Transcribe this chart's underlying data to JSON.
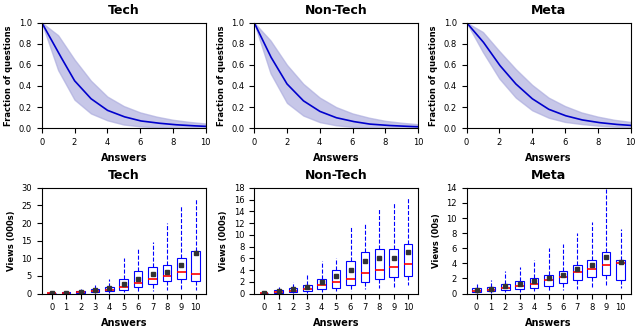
{
  "titles_top": [
    "Tech",
    "Non-Tech",
    "Meta"
  ],
  "titles_bottom": [
    "Tech",
    "Non-Tech",
    "Meta"
  ],
  "top_xlabel": "Answers",
  "top_ylabel": "Fraction of questions",
  "bottom_xlabel": "Answers",
  "bottom_ylabels": [
    "Views (000s)",
    "Views (000s)",
    "Views (00s)"
  ],
  "curve_color": "#0000cc",
  "fill_color": "#aaaadd",
  "tech_curve_mean": [
    1.0,
    0.72,
    0.45,
    0.28,
    0.17,
    0.11,
    0.07,
    0.05,
    0.035,
    0.025,
    0.018
  ],
  "tech_curve_upper": [
    1.0,
    0.88,
    0.65,
    0.45,
    0.3,
    0.21,
    0.15,
    0.11,
    0.08,
    0.06,
    0.045
  ],
  "tech_curve_lower": [
    1.0,
    0.55,
    0.27,
    0.14,
    0.075,
    0.035,
    0.018,
    0.009,
    0.004,
    0.002,
    0.001
  ],
  "nontech_curve_mean": [
    1.0,
    0.68,
    0.42,
    0.26,
    0.16,
    0.1,
    0.065,
    0.04,
    0.028,
    0.02,
    0.014
  ],
  "nontech_curve_upper": [
    1.0,
    0.83,
    0.6,
    0.42,
    0.29,
    0.2,
    0.14,
    0.1,
    0.07,
    0.052,
    0.038
  ],
  "nontech_curve_lower": [
    1.0,
    0.52,
    0.24,
    0.12,
    0.058,
    0.028,
    0.013,
    0.006,
    0.003,
    0.001,
    0.001
  ],
  "meta_curve_mean": [
    1.0,
    0.82,
    0.6,
    0.42,
    0.28,
    0.18,
    0.12,
    0.08,
    0.055,
    0.038,
    0.027
  ],
  "meta_curve_upper": [
    1.0,
    0.91,
    0.73,
    0.56,
    0.41,
    0.29,
    0.21,
    0.15,
    0.11,
    0.08,
    0.06
  ],
  "meta_curve_lower": [
    1.0,
    0.72,
    0.47,
    0.29,
    0.17,
    0.1,
    0.06,
    0.04,
    0.025,
    0.015,
    0.009
  ],
  "tech_boxes": {
    "positions": [
      0,
      1,
      2,
      3,
      4,
      5,
      6,
      7,
      8,
      9,
      10
    ],
    "medians": [
      0.08,
      0.18,
      0.35,
      0.7,
      1.1,
      2.0,
      3.0,
      4.2,
      5.0,
      6.0,
      5.5
    ],
    "q1": [
      0.04,
      0.1,
      0.2,
      0.4,
      0.6,
      1.0,
      1.8,
      2.8,
      3.5,
      4.0,
      3.5
    ],
    "q3": [
      0.15,
      0.3,
      0.6,
      1.2,
      1.8,
      4.0,
      6.5,
      7.5,
      8.0,
      10.0,
      12.0
    ],
    "whislo": [
      0.01,
      0.04,
      0.08,
      0.15,
      0.25,
      0.3,
      0.5,
      0.8,
      1.0,
      1.2,
      1.0
    ],
    "whishi": [
      0.3,
      0.6,
      1.2,
      2.5,
      4.0,
      10.0,
      13.0,
      14.5,
      20.0,
      25.0,
      27.0
    ],
    "means": [
      0.12,
      0.25,
      0.5,
      1.0,
      1.5,
      2.8,
      4.0,
      5.5,
      6.0,
      8.0,
      11.5
    ],
    "ylim": [
      0,
      30
    ],
    "yticks": [
      0,
      5,
      10,
      15,
      20,
      25,
      30
    ]
  },
  "nontech_boxes": {
    "positions": [
      0,
      1,
      2,
      3,
      4,
      5,
      6,
      7,
      8,
      9,
      10
    ],
    "medians": [
      0.04,
      0.3,
      0.5,
      0.8,
      1.5,
      2.0,
      2.5,
      3.5,
      4.0,
      4.5,
      5.0
    ],
    "q1": [
      0.02,
      0.15,
      0.25,
      0.4,
      0.7,
      1.0,
      1.4,
      2.0,
      2.5,
      2.8,
      3.0
    ],
    "q3": [
      0.08,
      0.6,
      1.0,
      1.5,
      2.5,
      4.0,
      5.5,
      7.0,
      7.5,
      7.5,
      8.5
    ],
    "whislo": [
      0.005,
      0.05,
      0.1,
      0.15,
      0.3,
      0.4,
      0.5,
      0.8,
      1.0,
      1.2,
      1.5
    ],
    "whishi": [
      0.15,
      1.2,
      2.0,
      3.2,
      5.5,
      6.0,
      11.5,
      12.0,
      14.5,
      15.5,
      16.5
    ],
    "means": [
      0.06,
      0.4,
      0.7,
      1.1,
      2.0,
      3.0,
      4.0,
      5.5,
      6.0,
      6.0,
      7.0
    ],
    "ylim": [
      0,
      18
    ],
    "yticks": [
      0,
      2,
      4,
      6,
      8,
      10,
      12,
      14,
      16,
      18
    ]
  },
  "meta_boxes": {
    "positions": [
      0,
      1,
      2,
      3,
      4,
      5,
      6,
      7,
      8,
      9,
      10
    ],
    "medians": [
      0.4,
      0.5,
      0.8,
      1.0,
      1.3,
      1.8,
      2.2,
      2.8,
      3.2,
      3.8,
      4.0
    ],
    "q1": [
      0.2,
      0.3,
      0.5,
      0.6,
      0.8,
      1.0,
      1.4,
      1.8,
      2.2,
      2.5,
      1.8
    ],
    "q3": [
      0.7,
      0.9,
      1.3,
      1.6,
      2.0,
      2.5,
      3.0,
      3.8,
      4.5,
      5.5,
      4.5
    ],
    "whislo": [
      0.05,
      0.1,
      0.2,
      0.25,
      0.3,
      0.4,
      0.5,
      0.6,
      0.8,
      1.0,
      0.8
    ],
    "whishi": [
      1.2,
      1.8,
      3.0,
      3.5,
      4.5,
      6.0,
      6.5,
      8.0,
      9.5,
      14.0,
      8.5
    ],
    "means": [
      0.5,
      0.65,
      0.95,
      1.2,
      1.6,
      2.0,
      2.5,
      3.2,
      3.8,
      4.8,
      4.2
    ],
    "ylim": [
      0,
      14
    ],
    "yticks": [
      0,
      2,
      4,
      6,
      8,
      10,
      12,
      14
    ]
  },
  "box_color": "#0000ff",
  "median_color": "#ff0000",
  "mean_marker_color": "#333333",
  "box_width": 0.6,
  "curve_x": [
    0,
    1,
    2,
    3,
    4,
    5,
    6,
    7,
    8,
    9,
    10
  ],
  "figsize": [
    6.4,
    3.32
  ],
  "dpi": 100
}
